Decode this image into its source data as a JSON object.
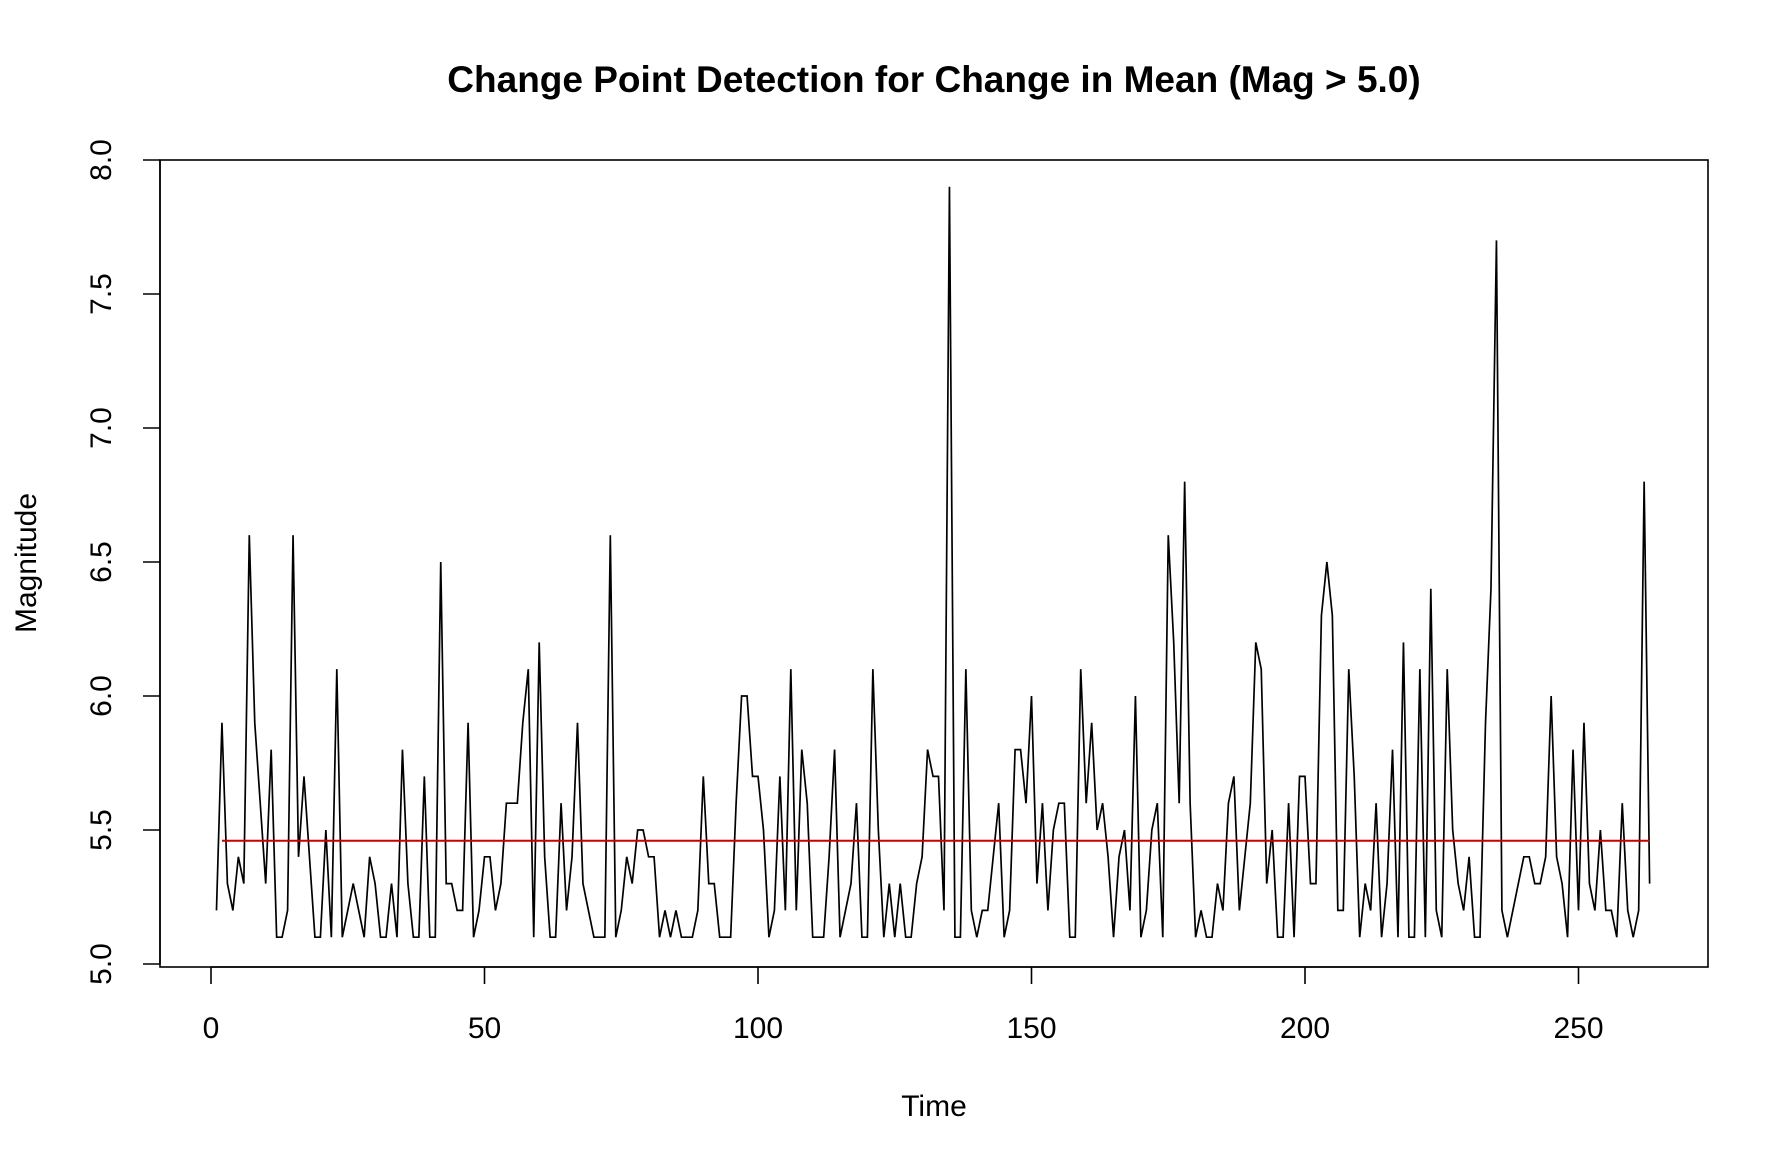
{
  "chart_data": {
    "type": "line",
    "title": "Change Point Detection for Change in Mean (Mag > 5.0)",
    "xlabel": "Time",
    "ylabel": "Magnitude",
    "xlim": [
      1,
      263
    ],
    "ylim": [
      5.0,
      8.0
    ],
    "x_ticks": [
      0,
      50,
      100,
      150,
      200,
      250
    ],
    "x_tick_labels": [
      "0",
      "50",
      "100",
      "150",
      "200",
      "250"
    ],
    "y_ticks": [
      5.0,
      5.5,
      6.0,
      6.5,
      7.0,
      7.5,
      8.0
    ],
    "y_tick_labels": [
      "5.0",
      "5.5",
      "6.0",
      "6.5",
      "7.0",
      "7.5",
      "8.0"
    ],
    "grid": false,
    "legend": "none",
    "colors": {
      "series": "#000000",
      "mean": "#cc0000"
    },
    "series": [
      {
        "x_start": 1,
        "x_step": 1,
        "values": [
          5.2,
          5.9,
          5.3,
          5.2,
          5.4,
          5.3,
          6.6,
          5.9,
          5.6,
          5.3,
          5.8,
          5.1,
          5.1,
          5.2,
          6.6,
          5.4,
          5.7,
          5.4,
          5.1,
          5.1,
          5.5,
          5.1,
          6.1,
          5.1,
          5.2,
          5.3,
          5.2,
          5.1,
          5.4,
          5.3,
          5.1,
          5.1,
          5.3,
          5.1,
          5.8,
          5.3,
          5.1,
          5.1,
          5.7,
          5.1,
          5.1,
          6.5,
          5.3,
          5.3,
          5.2,
          5.2,
          5.9,
          5.1,
          5.2,
          5.4,
          5.4,
          5.2,
          5.3,
          5.6,
          5.6,
          5.6,
          5.9,
          6.1,
          5.1,
          6.2,
          5.4,
          5.1,
          5.1,
          5.6,
          5.2,
          5.4,
          5.9,
          5.3,
          5.2,
          5.1,
          5.1,
          5.1,
          6.6,
          5.1,
          5.2,
          5.4,
          5.3,
          5.5,
          5.5,
          5.4,
          5.4,
          5.1,
          5.2,
          5.1,
          5.2,
          5.1,
          5.1,
          5.1,
          5.2,
          5.7,
          5.3,
          5.3,
          5.1,
          5.1,
          5.1,
          5.6,
          6.0,
          6.0,
          5.7,
          5.7,
          5.5,
          5.1,
          5.2,
          5.7,
          5.2,
          6.1,
          5.2,
          5.8,
          5.6,
          5.1,
          5.1,
          5.1,
          5.4,
          5.8,
          5.1,
          5.2,
          5.3,
          5.6,
          5.1,
          5.1,
          6.1,
          5.5,
          5.1,
          5.3,
          5.1,
          5.3,
          5.1,
          5.1,
          5.3,
          5.4,
          5.8,
          5.7,
          5.7,
          5.2,
          7.9,
          5.1,
          5.1,
          6.1,
          5.2,
          5.1,
          5.2,
          5.2,
          5.4,
          5.6,
          5.1,
          5.2,
          5.8,
          5.8,
          5.6,
          6.0,
          5.3,
          5.6,
          5.2,
          5.5,
          5.6,
          5.6,
          5.1,
          5.1,
          6.1,
          5.6,
          5.9,
          5.5,
          5.6,
          5.4,
          5.1,
          5.4,
          5.5,
          5.2,
          6.0,
          5.1,
          5.2,
          5.5,
          5.6,
          5.1,
          6.6,
          6.2,
          5.6,
          6.8,
          5.6,
          5.1,
          5.2,
          5.1,
          5.1,
          5.3,
          5.2,
          5.6,
          5.7,
          5.2,
          5.4,
          5.6,
          6.2,
          6.1,
          5.3,
          5.5,
          5.1,
          5.1,
          5.6,
          5.1,
          5.7,
          5.7,
          5.3,
          5.3,
          6.3,
          6.5,
          6.3,
          5.2,
          5.2,
          6.1,
          5.7,
          5.1,
          5.3,
          5.2,
          5.6,
          5.1,
          5.3,
          5.8,
          5.1,
          6.2,
          5.1,
          5.1,
          6.1,
          5.1,
          6.4,
          5.2,
          5.1,
          6.1,
          5.5,
          5.3,
          5.2,
          5.4,
          5.1,
          5.1,
          5.9,
          6.4,
          7.7,
          5.2,
          5.1,
          5.2,
          5.3,
          5.4,
          5.4,
          5.3,
          5.3,
          5.4,
          6.0,
          5.4,
          5.3,
          5.1,
          5.8,
          5.2,
          5.9,
          5.3,
          5.2,
          5.5,
          5.2,
          5.2,
          5.1,
          5.6,
          5.2,
          5.1,
          5.2,
          6.8,
          5.3
        ]
      }
    ],
    "mean_line": {
      "value": 5.46,
      "x_from": 2,
      "x_to": 263
    }
  }
}
